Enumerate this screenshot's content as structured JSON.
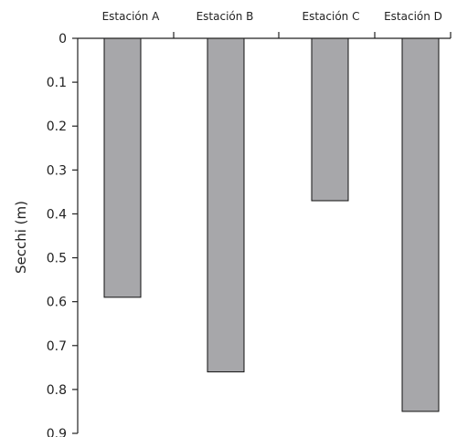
{
  "chart_data": {
    "type": "bar",
    "orientation": "vertical-down",
    "categories": [
      "Estación A",
      "Estación B",
      "Estación C",
      "Estación D"
    ],
    "values": [
      0.59,
      0.76,
      0.37,
      0.85
    ],
    "title": "",
    "xlabel": "",
    "ylabel": "Secchi (m)",
    "ylim": [
      0,
      0.9
    ],
    "yticks": [
      0,
      0.1,
      0.2,
      0.3,
      0.4,
      0.5,
      0.6,
      0.7,
      0.8,
      0.9
    ],
    "ytick_labels": [
      "0",
      "0.1",
      "0.2",
      "0.3",
      "0.4",
      "0.5",
      "0.6",
      "0.7",
      "0.8",
      "0.9"
    ],
    "x_axis_position": "top",
    "y_axis_inverted": true,
    "grid": false,
    "legend": "none",
    "bar_color": "#a7a7aa",
    "bar_edge_color": "#111111",
    "axis_color": "#222222"
  }
}
